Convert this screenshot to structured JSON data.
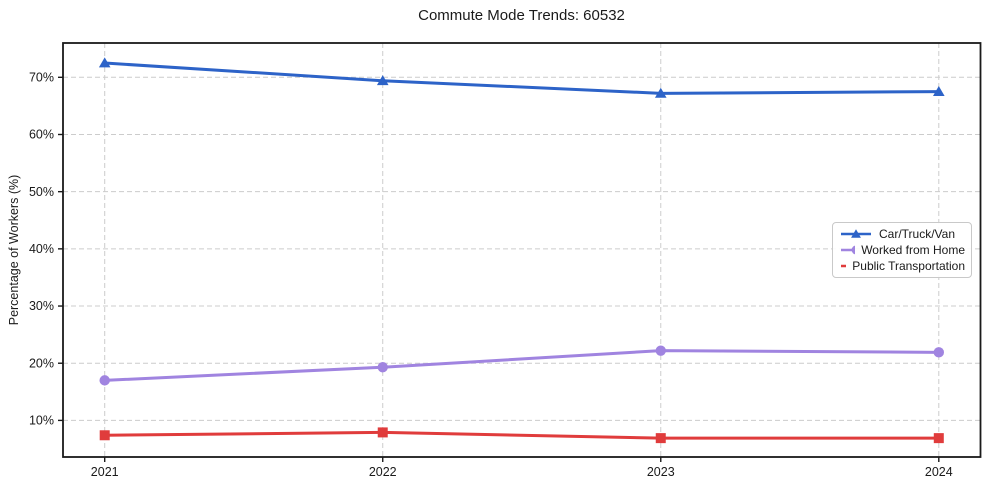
{
  "chart_data": {
    "type": "line",
    "title": "Commute Mode Trends: 60532",
    "xlabel": "",
    "ylabel": "Percentage of Workers (%)",
    "x": [
      2021,
      2022,
      2023,
      2024
    ],
    "x_tick_labels": [
      "2021",
      "2022",
      "2023",
      "2024"
    ],
    "y_ticks": [
      10,
      20,
      30,
      40,
      50,
      60,
      70
    ],
    "y_tick_suffix": "%",
    "xlim": [
      2020.85,
      2024.15
    ],
    "ylim": [
      3.6,
      76.0
    ],
    "grid": true,
    "grid_color": "#cccccc",
    "background": "#ffffff",
    "axis_color": "#1a1a1a",
    "legend": {
      "position": "right-center",
      "border_color": "#c9c9c9"
    },
    "series": [
      {
        "name": "Car/Truck/Van",
        "marker": "triangle",
        "color": "#2d63c8",
        "values": [
          72.5,
          69.4,
          67.2,
          67.5
        ]
      },
      {
        "name": "Worked from Home",
        "marker": "circle",
        "color": "#a084e0",
        "values": [
          17.0,
          19.3,
          22.2,
          21.9
        ]
      },
      {
        "name": "Public Transportation",
        "marker": "square",
        "color": "#e03c3c",
        "values": [
          7.4,
          7.9,
          6.9,
          6.9
        ]
      }
    ]
  }
}
